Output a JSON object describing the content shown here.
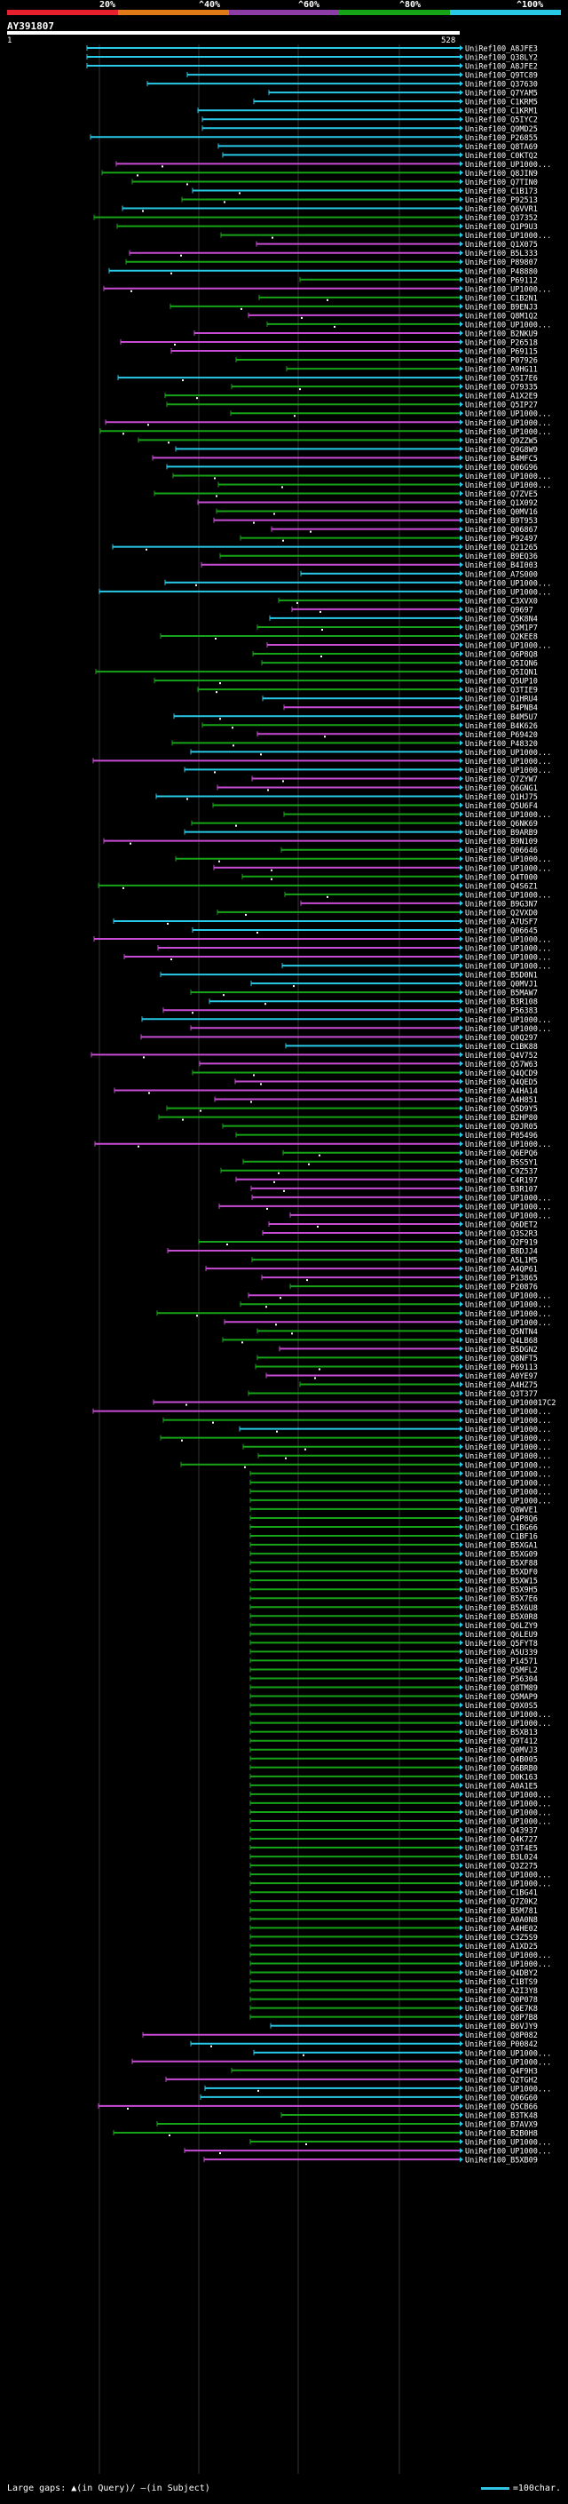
{
  "legend": {
    "labels": [
      "20%",
      "^40%",
      "^60%",
      "^80%",
      "^100%"
    ],
    "colors": [
      "#e8202e",
      "#e07a16",
      "#8e3ca6",
      "#17a317",
      "#29c9e8"
    ]
  },
  "query": {
    "id": "AY391807",
    "start": "1",
    "end": "528"
  },
  "footer": {
    "gaps_text": "Large gaps: ▲(in Query)/ –(in Subject)",
    "scale_text": "=100char."
  },
  "hits": [
    "UniRef100_A8JFE3",
    "UniRef100_Q38LY2",
    "UniRef100_A8JFE2",
    "UniRef100_Q9TC89",
    "UniRef100_Q37630",
    "UniRef100_Q7YAM5",
    "UniRef100_C1KRM5",
    "UniRef100_C1KRM1",
    "UniRef100_Q5IYC2",
    "UniRef100_Q9MD25",
    "UniRef100_P26855",
    "UniRef100_Q8TA69",
    "UniRef100_C0KTQ2",
    "UniRef100_UP1000...",
    "UniRef100_Q8JIN9",
    "UniRef100_Q7TIN0",
    "UniRef100_C1B173",
    "UniRef100_P92513",
    "UniRef100_Q6VVR1",
    "UniRef100_Q37352",
    "UniRef100_Q1P9U3",
    "UniRef100_UP1000...",
    "UniRef100_Q1X075",
    "UniRef100_B5L333",
    "UniRef100_P89807",
    "UniRef100_P48880",
    "UniRef100_P69112",
    "UniRef100_UP1000...",
    "UniRef100_C1B2N1",
    "UniRef100_B9ENJ3",
    "UniRef100_Q8M1Q2",
    "UniRef100_UP1000...",
    "UniRef100_B2NKU9",
    "UniRef100_P26518",
    "UniRef100_P69115",
    "UniRef100_P07926",
    "UniRef100_A9HG11",
    "UniRef100_Q5I7E6",
    "UniRef100_O79335",
    "UniRef100_A1X2E9",
    "UniRef100_Q5IP27",
    "UniRef100_UP1000...",
    "UniRef100_UP1000...",
    "UniRef100_UP1000...",
    "UniRef100_Q9ZZW5",
    "UniRef100_Q9G8W9",
    "UniRef100_B4MFC5",
    "UniRef100_Q06G96",
    "UniRef100_UP1000...",
    "UniRef100_UP1000...",
    "UniRef100_Q7ZVE5",
    "UniRef100_Q1X092",
    "UniRef100_Q0MV16",
    "UniRef100_B9T953",
    "UniRef100_Q06867",
    "UniRef100_P92497",
    "UniRef100_Q21265",
    "UniRef100_B9EQ36",
    "UniRef100_B4I003",
    "UniRef100_A7S000",
    "UniRef100_UP1000...",
    "UniRef100_UP1000...",
    "UniRef100_C3XVX0",
    "UniRef100_Q9697",
    "UniRef100_Q5K8N4",
    "UniRef100_Q5M1P7",
    "UniRef100_Q2KEE8",
    "UniRef100_UP1000...",
    "UniRef100_Q6P8Q8",
    "UniRef100_Q5IQN6",
    "UniRef100_Q5IQN1",
    "UniRef100_Q5UP10",
    "UniRef100_Q3TIE9",
    "UniRef100_Q1HRU4",
    "UniRef100_B4PNB4",
    "UniRef100_B4M5U7",
    "UniRef100_B4K626",
    "UniRef100_P69420",
    "UniRef100_P48320",
    "UniRef100_UP1000...",
    "UniRef100_UP1000...",
    "UniRef100_UP1000...",
    "UniRef100_Q7ZYW7",
    "UniRef100_Q6GNG1",
    "UniRef100_Q1HJ75",
    "UniRef100_Q5U6F4",
    "UniRef100_UP1000...",
    "UniRef100_Q6NK69",
    "UniRef100_B9ARB9",
    "UniRef100_B9N109",
    "UniRef100_Q06646",
    "UniRef100_UP1000...",
    "UniRef100_UP1000...",
    "UniRef100_Q4T000",
    "UniRef100_Q4S6Z1",
    "UniRef100_UP1000...",
    "UniRef100_B9G3N7",
    "UniRef100_Q2VXD0",
    "UniRef100_A7USF7",
    "UniRef100_Q06645",
    "UniRef100_UP1000...",
    "UniRef100_UP1000...",
    "UniRef100_UP1000...",
    "UniRef100_UP1000...",
    "UniRef100_B5D0N1",
    "UniRef100_Q0MVJ1",
    "UniRef100_B5MAW7",
    "UniRef100_B3R108",
    "UniRef100_P56383",
    "UniRef100_UP1000...",
    "UniRef100_UP1000...",
    "UniRef100_Q0Q297",
    "UniRef100_C1BK88",
    "UniRef100_Q4V752",
    "UniRef100_Q57W63",
    "UniRef100_Q4QCD9",
    "UniRef100_Q4QED5",
    "UniRef100_A4HA14",
    "UniRef100_A4H851",
    "UniRef100_Q5D9Y5",
    "UniRef100_B2HP80",
    "UniRef100_Q9JR05",
    "UniRef100_P05496",
    "UniRef100_UP1000...",
    "UniRef100_Q6EPQ6",
    "UniRef100_B5S5Y1",
    "UniRef100_C9Z537",
    "UniRef100_C4R197",
    "UniRef100_B3R107",
    "UniRef100_UP1000...",
    "UniRef100_UP1000...",
    "UniRef100_UP1000...",
    "UniRef100_Q6DET2",
    "UniRef100_Q3S2R3",
    "UniRef100_Q2F919",
    "UniRef100_B8DJJ4",
    "UniRef100_A5L1M5",
    "UniRef100_A4QP61",
    "UniRef100_P13865",
    "UniRef100_P20876",
    "UniRef100_UP1000...",
    "UniRef100_UP1000...",
    "UniRef100_UP1000...",
    "UniRef100_UP1000...",
    "UniRef100_Q5NTN4",
    "UniRef100_Q4LB68",
    "UniRef100_B5DGN2",
    "UniRef100_Q8NFT5",
    "UniRef100_P69113",
    "UniRef100_A0YE97",
    "UniRef100_A4HZ75",
    "UniRef100_Q3T377",
    "UniRef100_UP100017C2",
    "UniRef100_UP1000...",
    "UniRef100_UP1000...",
    "UniRef100_UP1000...",
    "UniRef100_UP1000...",
    "UniRef100_UP1000...",
    "UniRef100_UP1000...",
    "UniRef100_UP1000...",
    "UniRef100_UP1000...",
    "UniRef100_UP1000...",
    "UniRef100_UP1000...",
    "UniRef100_UP1000...",
    "UniRef100_Q8WVE1",
    "UniRef100_Q4P8Q6",
    "UniRef100_C1BG66",
    "UniRef100_C1BF16",
    "UniRef100_B5XGA1",
    "UniRef100_B5XG09",
    "UniRef100_B5XF88",
    "UniRef100_B5XDF0",
    "UniRef100_B5XW15",
    "UniRef100_B5X9H5",
    "UniRef100_B5X7E6",
    "UniRef100_B5X6U8",
    "UniRef100_B5X0R8",
    "UniRef100_Q6LZY9",
    "UniRef100_Q6LEU9",
    "UniRef100_Q5FYT8",
    "UniRef100_A5U339",
    "UniRef100_P14571",
    "UniRef100_Q5MFL2",
    "UniRef100_P56304",
    "UniRef100_Q8TM89",
    "UniRef100_Q5MAP9",
    "UniRef100_Q9X0S5",
    "UniRef100_UP1000...",
    "UniRef100_UP1000...",
    "UniRef100_B5XB13",
    "UniRef100_Q9T412",
    "UniRef100_Q0MVJ3",
    "UniRef100_Q4B005",
    "UniRef100_Q6BRB0",
    "UniRef100_D0K163",
    "UniRef100_A0A1E5",
    "UniRef100_UP1000...",
    "UniRef100_UP1000...",
    "UniRef100_UP1000...",
    "UniRef100_UP1000...",
    "UniRef100_Q43937",
    "UniRef100_Q4K727",
    "UniRef100_Q3T4E5",
    "UniRef100_B3L024",
    "UniRef100_Q3Z275",
    "UniRef100_UP1000...",
    "UniRef100_UP1000...",
    "UniRef100_C1BG41",
    "UniRef100_Q7Z0K2",
    "UniRef100_B5M781",
    "UniRef100_A0A0N8",
    "UniRef100_A4HE02",
    "UniRef100_C3Z5S9",
    "UniRef100_A1XD25",
    "UniRef100_UP1000...",
    "UniRef100_UP1000...",
    "UniRef100_Q4DBY2",
    "UniRef100_C1BTS9",
    "UniRef100_A2I3Y8",
    "UniRef100_Q0P078",
    "UniRef100_Q6E7K8",
    "UniRef100_Q8P7B8",
    "UniRef100_B6VJY9",
    "UniRef100_Q8P082",
    "UniRef100_P00842",
    "UniRef100_UP1000...",
    "UniRef100_UP1000...",
    "UniRef100_Q4F9H3",
    "UniRef100_Q2TGH2",
    "UniRef100_UP1000...",
    "UniRef100_Q06G60",
    "UniRef100_Q5CB66",
    "UniRef100_B3TK48",
    "UniRef100_B7AVX9",
    "UniRef100_B2B0H8",
    "UniRef100_UP1000...",
    "UniRef100_UP1000...",
    "UniRef100_B5XB09"
  ]
}
